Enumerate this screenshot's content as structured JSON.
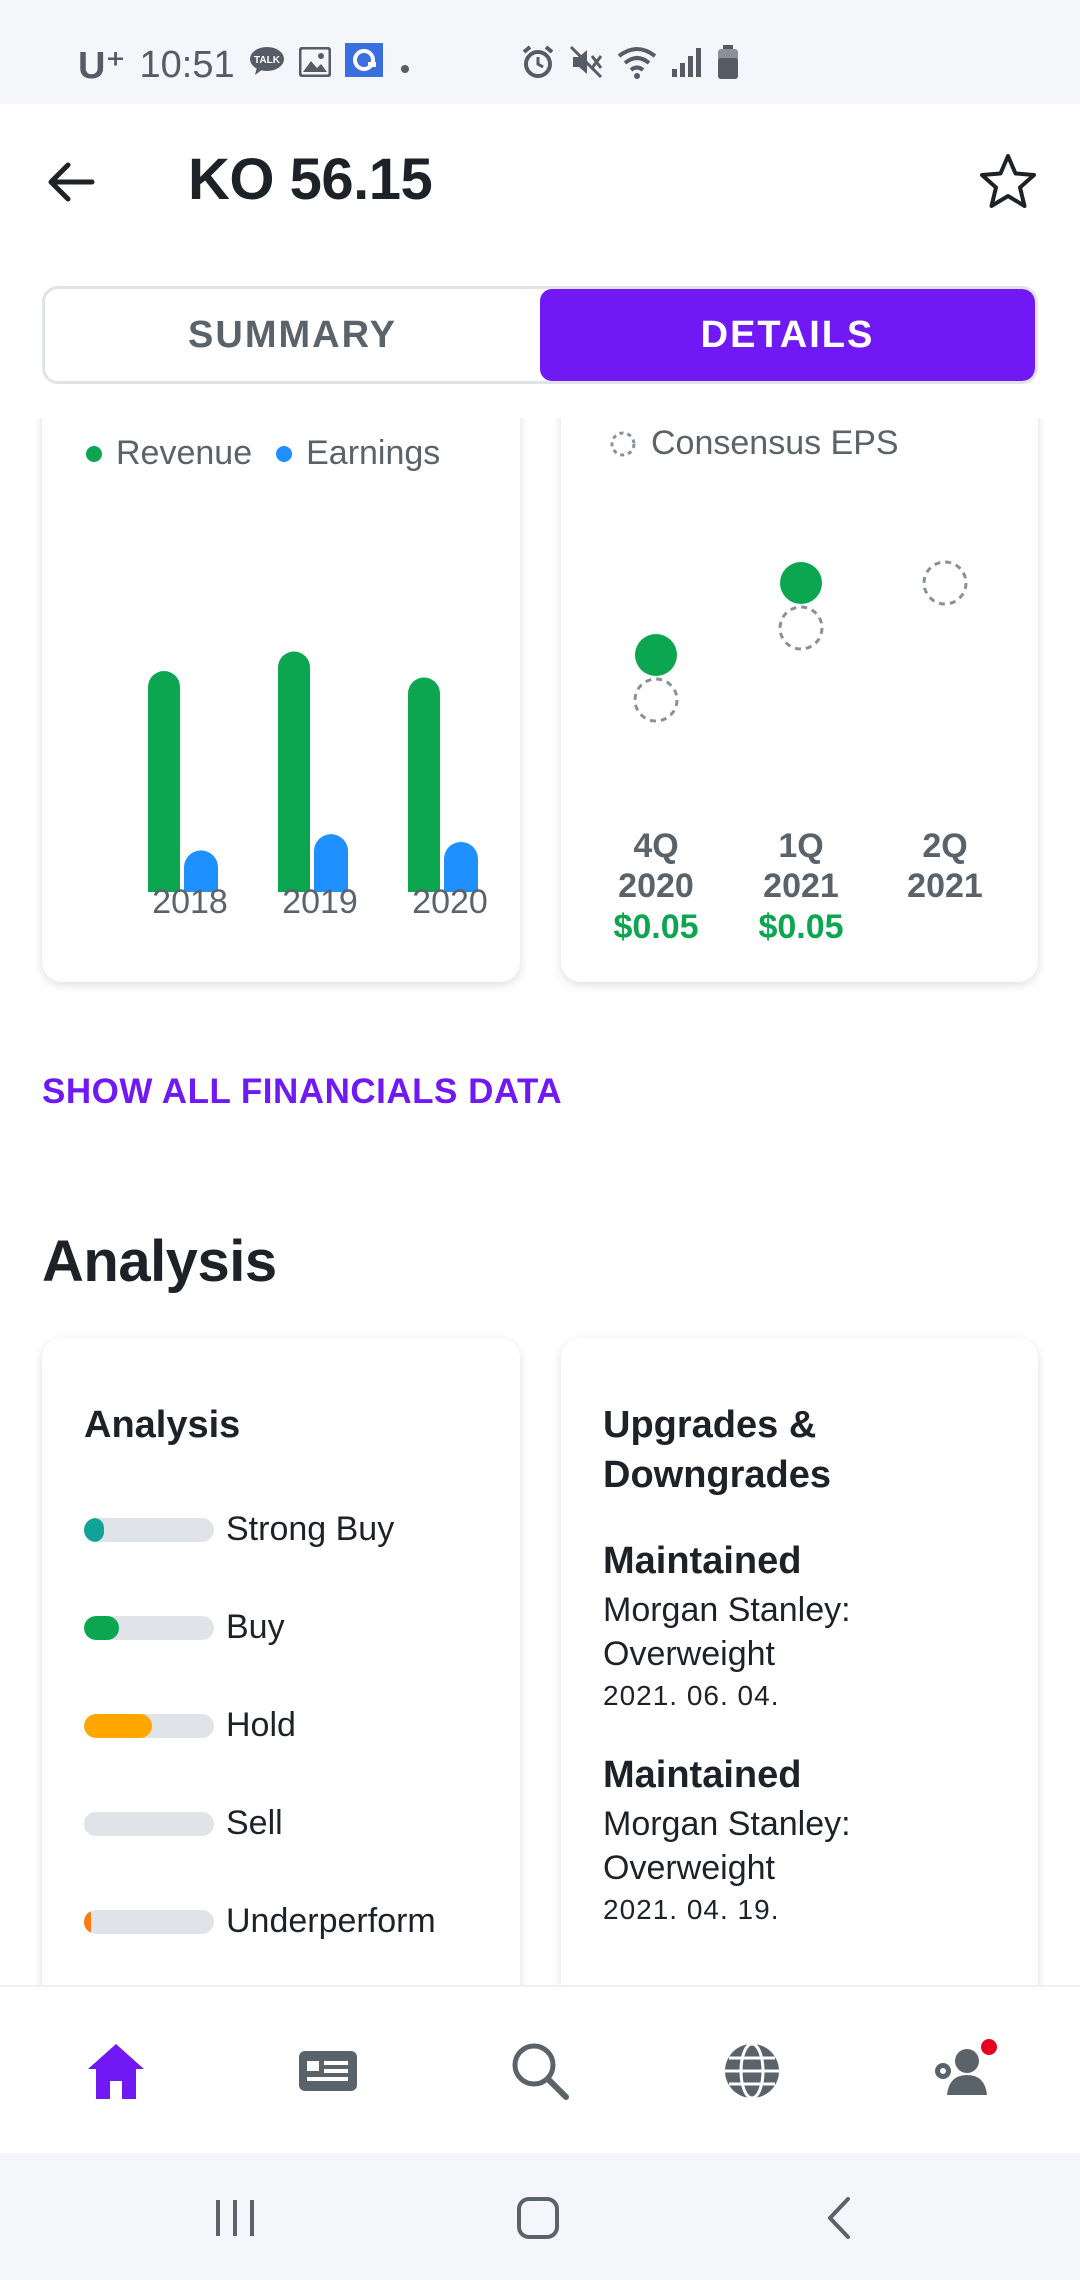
{
  "status_bar": {
    "carrier": "U⁺",
    "time": "10:51",
    "icons": [
      "talk-icon",
      "gallery-icon",
      "app-icon",
      "dot-icon",
      "alarm-icon",
      "mute-icon",
      "wifi-icon",
      "signal-icon",
      "battery-icon"
    ]
  },
  "header": {
    "title": "KO 56.15",
    "back_icon": "back-arrow-icon",
    "favorite_icon": "star-icon"
  },
  "tabs": [
    {
      "label": "SUMMARY",
      "active": false
    },
    {
      "label": "DETAILS",
      "active": true
    }
  ],
  "financials_card": {
    "legend": [
      {
        "label": "Revenue",
        "color": "#0ca650"
      },
      {
        "label": "Earnings",
        "color": "#1e90ff"
      }
    ],
    "chart_data": {
      "type": "bar",
      "categories": [
        "2018",
        "2019",
        "2020"
      ],
      "series": [
        {
          "name": "Revenue",
          "values": [
            34,
            37,
            33
          ],
          "color": "#0ca650"
        },
        {
          "name": "Earnings",
          "values": [
            6.4,
            8.9,
            7.7
          ],
          "color": "#1e90ff"
        }
      ],
      "ylim": [
        0,
        60
      ]
    }
  },
  "earnings_card": {
    "legend": [
      {
        "label": "Consensus EPS",
        "style": "dashed-circle"
      }
    ],
    "chart_data": {
      "type": "scatter",
      "categories": [
        "4Q 2020",
        "1Q 2021",
        "2Q 2021"
      ],
      "series": [
        {
          "name": "Actual",
          "values": [
            0.47,
            0.55,
            null
          ],
          "color": "#0ca650"
        },
        {
          "name": "Consensus EPS",
          "values": [
            0.42,
            0.5,
            0.55
          ],
          "style": "dashed-circle"
        }
      ]
    },
    "columns": [
      {
        "quarter": "4Q",
        "year": "2020",
        "value": "$0.05"
      },
      {
        "quarter": "1Q",
        "year": "2021",
        "value": "$0.05"
      },
      {
        "quarter": "2Q",
        "year": "2021",
        "value": ""
      }
    ]
  },
  "show_all_link": "SHOW ALL FINANCIALS DATA",
  "analysis_section": {
    "title": "Analysis",
    "analysis_card": {
      "title": "Analysis",
      "ratings": [
        {
          "label": "Strong Buy",
          "fraction": 0.15,
          "color": "#11a29a"
        },
        {
          "label": "Buy",
          "fraction": 0.27,
          "color": "#0ca650"
        },
        {
          "label": "Hold",
          "fraction": 0.52,
          "color": "#ffa700"
        },
        {
          "label": "Sell",
          "fraction": 0.0,
          "color": "#ff7b12"
        },
        {
          "label": "Underperform",
          "fraction": 0.05,
          "color": "#ff7b12"
        }
      ]
    },
    "upgrades_card": {
      "title_line1": "Upgrades &",
      "title_line2": "Downgrades",
      "items": [
        {
          "action": "Maintained",
          "firm": "Morgan Stanley:",
          "rating": "Overweight",
          "date": "2021. 06. 04."
        },
        {
          "action": "Maintained",
          "firm": "Morgan Stanley:",
          "rating": "Overweight",
          "date": "2021. 04. 19."
        }
      ]
    }
  },
  "bottom_nav": [
    {
      "icon": "home-icon",
      "active": true
    },
    {
      "icon": "news-icon",
      "active": false
    },
    {
      "icon": "search-icon",
      "active": false
    },
    {
      "icon": "globe-icon",
      "active": false
    },
    {
      "icon": "profile-settings-icon",
      "active": false,
      "badge": true
    }
  ],
  "system_nav": [
    "recent-apps-icon",
    "home-button-icon",
    "back-icon"
  ],
  "colors": {
    "accent": "#7119f5",
    "green": "#0ca650",
    "blue": "#1e90ff"
  }
}
